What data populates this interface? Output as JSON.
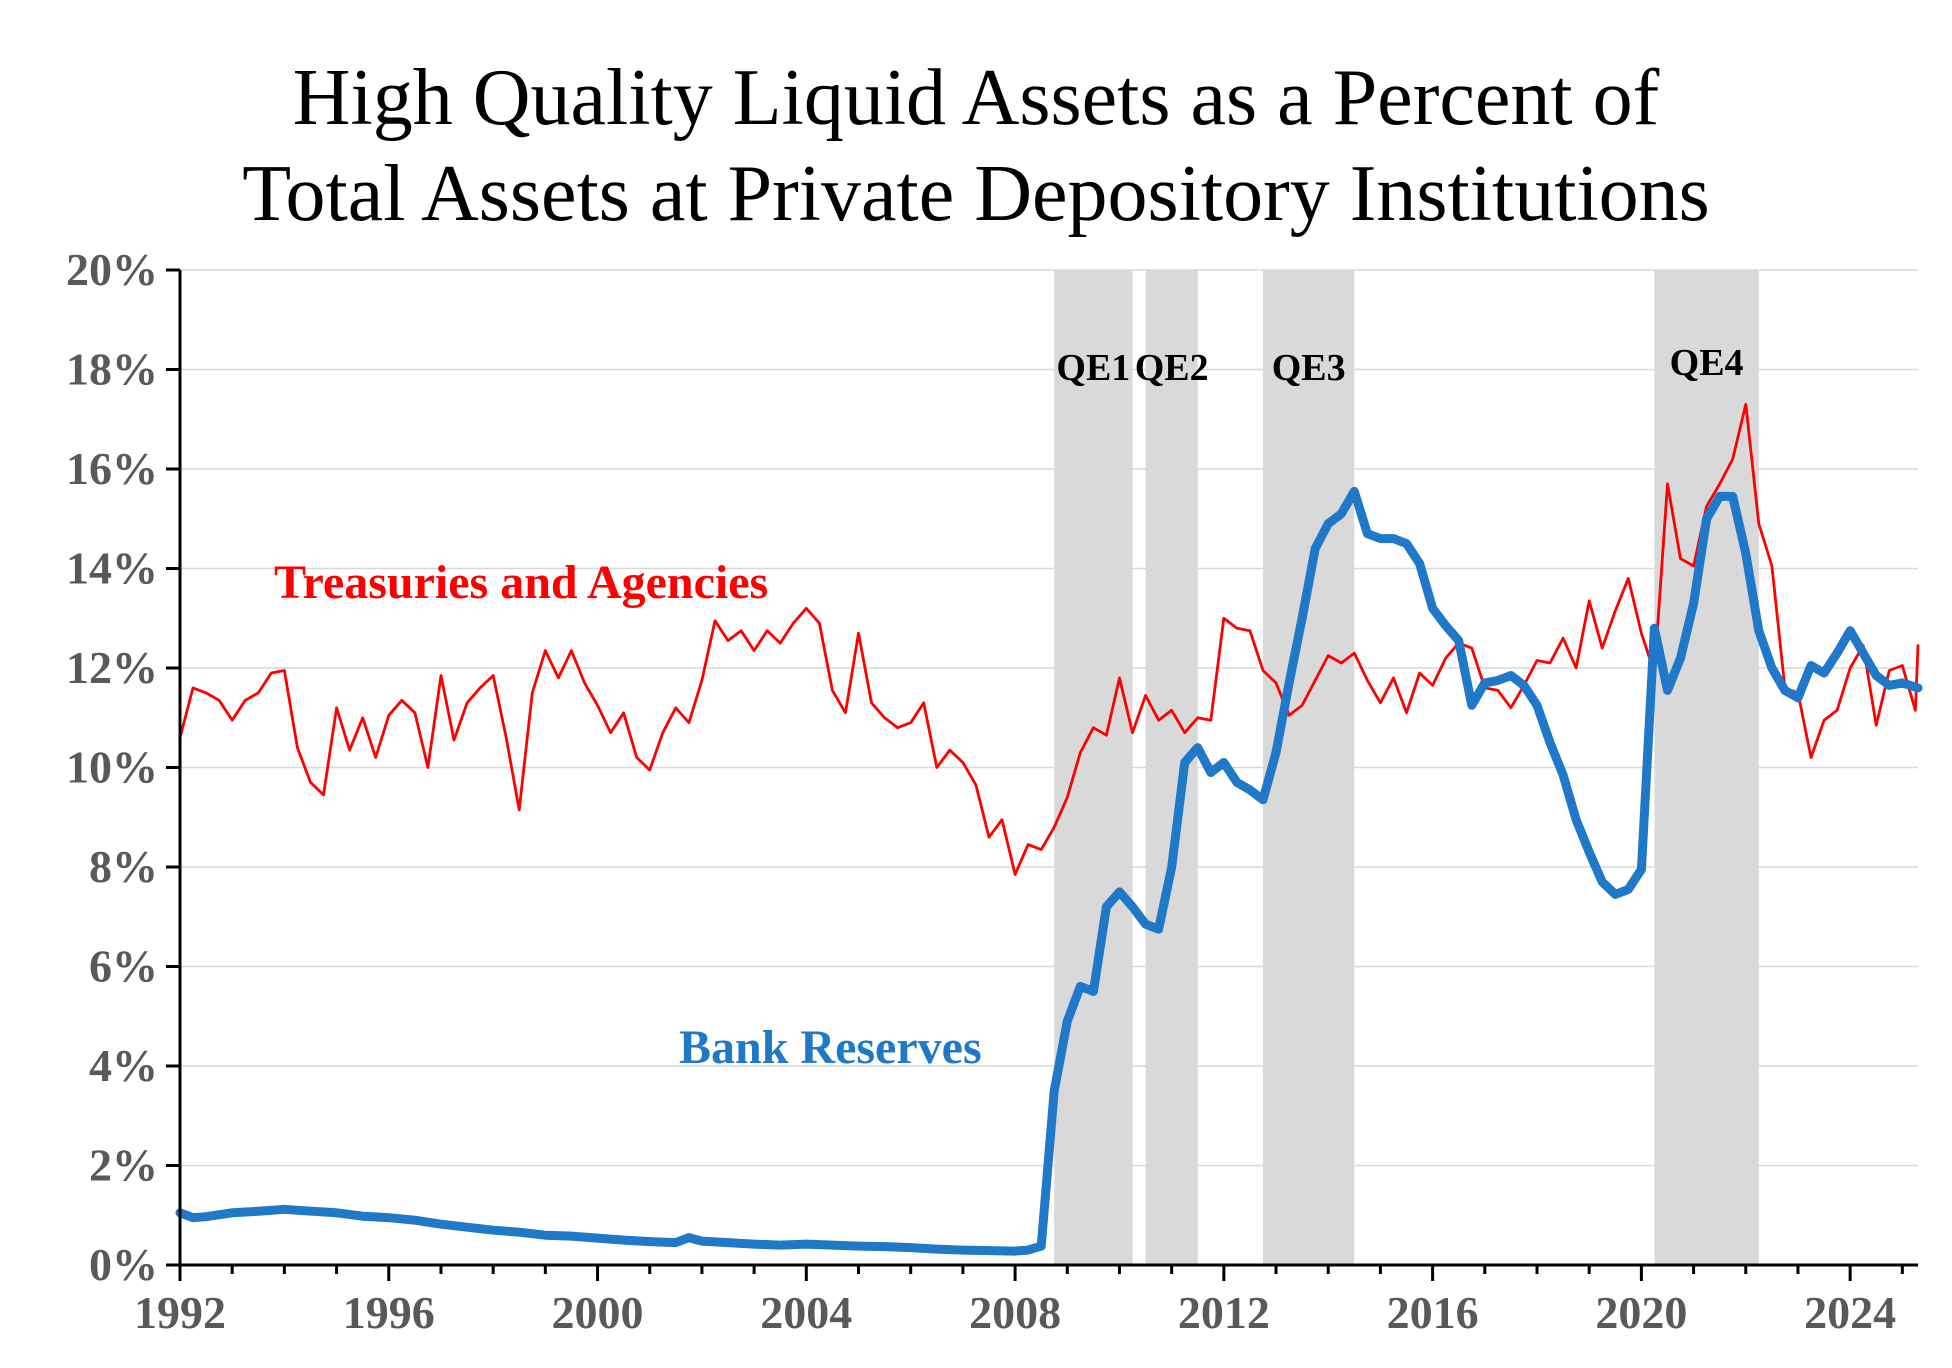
{
  "chart_data": {
    "type": "line",
    "title": "High Quality Liquid Assets as a Percent of Total Assets at Private Depository Institutions",
    "title_lines": [
      "High Quality Liquid Assets as a Percent of",
      "Total Assets at Private Depository Institutions"
    ],
    "xlabel": "",
    "ylabel": "",
    "xlim": [
      1992,
      2025.3
    ],
    "ylim": [
      0,
      20
    ],
    "x_ticks": [
      1992,
      1996,
      2000,
      2004,
      2008,
      2012,
      2016,
      2020,
      2024
    ],
    "y_ticks": [
      0,
      2,
      4,
      6,
      8,
      10,
      12,
      14,
      16,
      18,
      20
    ],
    "y_tick_labels": [
      "0%",
      "2%",
      "4%",
      "6%",
      "8%",
      "10%",
      "12%",
      "14%",
      "16%",
      "18%",
      "20%"
    ],
    "grid": "horizontal",
    "shaded_periods": [
      {
        "label": "QE1",
        "start": 2008.75,
        "end": 2010.25
      },
      {
        "label": "QE2",
        "start": 2010.5,
        "end": 2011.5
      },
      {
        "label": "QE3",
        "start": 2012.75,
        "end": 2014.5
      },
      {
        "label": "QE4",
        "start": 2020.25,
        "end": 2022.25
      }
    ],
    "series": [
      {
        "name": "Treasuries and Agencies",
        "color": "#ff0000",
        "style": "thin",
        "points": [
          [
            1992.0,
            10.6
          ],
          [
            1992.25,
            11.6
          ],
          [
            1992.5,
            11.5
          ],
          [
            1992.75,
            11.35
          ],
          [
            1993.0,
            10.95
          ],
          [
            1993.25,
            11.35
          ],
          [
            1993.5,
            11.5
          ],
          [
            1993.75,
            11.9
          ],
          [
            1994.0,
            11.95
          ],
          [
            1994.25,
            10.4
          ],
          [
            1994.5,
            9.7
          ],
          [
            1994.75,
            9.45
          ],
          [
            1995.0,
            11.2
          ],
          [
            1995.25,
            10.35
          ],
          [
            1995.5,
            11.0
          ],
          [
            1995.75,
            10.2
          ],
          [
            1996.0,
            11.05
          ],
          [
            1996.25,
            11.35
          ],
          [
            1996.5,
            11.1
          ],
          [
            1996.75,
            10.0
          ],
          [
            1997.0,
            11.85
          ],
          [
            1997.25,
            10.55
          ],
          [
            1997.5,
            11.3
          ],
          [
            1997.75,
            11.6
          ],
          [
            1998.0,
            11.85
          ],
          [
            1998.25,
            10.6
          ],
          [
            1998.5,
            9.15
          ],
          [
            1998.75,
            11.5
          ],
          [
            1999.0,
            12.35
          ],
          [
            1999.25,
            11.8
          ],
          [
            1999.5,
            12.35
          ],
          [
            1999.75,
            11.7
          ],
          [
            2000.0,
            11.25
          ],
          [
            2000.25,
            10.7
          ],
          [
            2000.5,
            11.1
          ],
          [
            2000.75,
            10.2
          ],
          [
            2001.0,
            9.95
          ],
          [
            2001.25,
            10.7
          ],
          [
            2001.5,
            11.2
          ],
          [
            2001.75,
            10.9
          ],
          [
            2002.0,
            11.75
          ],
          [
            2002.25,
            12.95
          ],
          [
            2002.5,
            12.55
          ],
          [
            2002.75,
            12.75
          ],
          [
            2003.0,
            12.35
          ],
          [
            2003.25,
            12.75
          ],
          [
            2003.5,
            12.5
          ],
          [
            2003.75,
            12.9
          ],
          [
            2004.0,
            13.2
          ],
          [
            2004.25,
            12.9
          ],
          [
            2004.5,
            11.55
          ],
          [
            2004.75,
            11.1
          ],
          [
            2005.0,
            12.7
          ],
          [
            2005.25,
            11.3
          ],
          [
            2005.5,
            11.0
          ],
          [
            2005.75,
            10.8
          ],
          [
            2006.0,
            10.9
          ],
          [
            2006.25,
            11.3
          ],
          [
            2006.5,
            10.0
          ],
          [
            2006.75,
            10.35
          ],
          [
            2007.0,
            10.1
          ],
          [
            2007.25,
            9.65
          ],
          [
            2007.5,
            8.6
          ],
          [
            2007.75,
            8.95
          ],
          [
            2008.0,
            7.85
          ],
          [
            2008.25,
            8.45
          ],
          [
            2008.5,
            8.35
          ],
          [
            2008.75,
            8.8
          ],
          [
            2009.0,
            9.4
          ],
          [
            2009.25,
            10.3
          ],
          [
            2009.5,
            10.8
          ],
          [
            2009.75,
            10.65
          ],
          [
            2010.0,
            11.8
          ],
          [
            2010.25,
            10.7
          ],
          [
            2010.5,
            11.45
          ],
          [
            2010.75,
            10.95
          ],
          [
            2011.0,
            11.15
          ],
          [
            2011.25,
            10.7
          ],
          [
            2011.5,
            11.0
          ],
          [
            2011.75,
            10.95
          ],
          [
            2012.0,
            13.0
          ],
          [
            2012.25,
            12.8
          ],
          [
            2012.5,
            12.75
          ],
          [
            2012.75,
            11.95
          ],
          [
            2013.0,
            11.7
          ],
          [
            2013.25,
            11.05
          ],
          [
            2013.5,
            11.25
          ],
          [
            2013.75,
            11.75
          ],
          [
            2014.0,
            12.25
          ],
          [
            2014.25,
            12.1
          ],
          [
            2014.5,
            12.3
          ],
          [
            2014.75,
            11.75
          ],
          [
            2015.0,
            11.3
          ],
          [
            2015.25,
            11.8
          ],
          [
            2015.5,
            11.1
          ],
          [
            2015.75,
            11.9
          ],
          [
            2016.0,
            11.65
          ],
          [
            2016.25,
            12.2
          ],
          [
            2016.5,
            12.5
          ],
          [
            2016.75,
            12.4
          ],
          [
            2017.0,
            11.6
          ],
          [
            2017.25,
            11.55
          ],
          [
            2017.5,
            11.2
          ],
          [
            2017.75,
            11.65
          ],
          [
            2018.0,
            12.15
          ],
          [
            2018.25,
            12.1
          ],
          [
            2018.5,
            12.6
          ],
          [
            2018.75,
            12.0
          ],
          [
            2019.0,
            13.35
          ],
          [
            2019.25,
            12.4
          ],
          [
            2019.5,
            13.15
          ],
          [
            2019.75,
            13.8
          ],
          [
            2020.0,
            12.7
          ],
          [
            2020.25,
            11.9
          ],
          [
            2020.5,
            15.7
          ],
          [
            2020.75,
            14.2
          ],
          [
            2021.0,
            14.05
          ],
          [
            2021.25,
            15.25
          ],
          [
            2021.5,
            15.7
          ],
          [
            2021.75,
            16.2
          ],
          [
            2022.0,
            17.3
          ],
          [
            2022.25,
            14.9
          ],
          [
            2022.5,
            14.05
          ],
          [
            2022.75,
            11.6
          ],
          [
            2023.0,
            11.5
          ],
          [
            2023.25,
            10.2
          ],
          [
            2023.5,
            10.95
          ],
          [
            2023.75,
            11.15
          ],
          [
            2024.0,
            12.0
          ],
          [
            2024.25,
            12.45
          ],
          [
            2024.5,
            10.85
          ],
          [
            2024.75,
            11.95
          ],
          [
            2025.0,
            12.05
          ],
          [
            2025.25,
            11.15
          ],
          [
            2025.3,
            12.45
          ]
        ]
      },
      {
        "name": "Bank Reserves",
        "color": "#1f78c8",
        "style": "thick",
        "points": [
          [
            1992.0,
            1.05
          ],
          [
            1992.25,
            0.95
          ],
          [
            1992.5,
            0.97
          ],
          [
            1993.0,
            1.05
          ],
          [
            1993.5,
            1.08
          ],
          [
            1993.75,
            1.1
          ],
          [
            1994.0,
            1.12
          ],
          [
            1994.25,
            1.1
          ],
          [
            1995.0,
            1.05
          ],
          [
            1995.5,
            0.98
          ],
          [
            1996.0,
            0.95
          ],
          [
            1996.5,
            0.9
          ],
          [
            1997.0,
            0.82
          ],
          [
            1997.5,
            0.76
          ],
          [
            1998.0,
            0.7
          ],
          [
            1998.5,
            0.66
          ],
          [
            1999.0,
            0.6
          ],
          [
            1999.5,
            0.58
          ],
          [
            2000.0,
            0.54
          ],
          [
            2000.5,
            0.5
          ],
          [
            2001.0,
            0.47
          ],
          [
            2001.5,
            0.45
          ],
          [
            2001.75,
            0.55
          ],
          [
            2002.0,
            0.48
          ],
          [
            2002.5,
            0.45
          ],
          [
            2003.0,
            0.42
          ],
          [
            2003.5,
            0.4
          ],
          [
            2004.0,
            0.42
          ],
          [
            2004.5,
            0.4
          ],
          [
            2005.0,
            0.38
          ],
          [
            2005.5,
            0.37
          ],
          [
            2006.0,
            0.35
          ],
          [
            2006.5,
            0.32
          ],
          [
            2007.0,
            0.3
          ],
          [
            2007.5,
            0.29
          ],
          [
            2008.0,
            0.28
          ],
          [
            2008.25,
            0.3
          ],
          [
            2008.5,
            0.38
          ],
          [
            2008.75,
            3.5
          ],
          [
            2009.0,
            4.9
          ],
          [
            2009.25,
            5.6
          ],
          [
            2009.5,
            5.5
          ],
          [
            2009.75,
            7.2
          ],
          [
            2010.0,
            7.5
          ],
          [
            2010.25,
            7.2
          ],
          [
            2010.5,
            6.85
          ],
          [
            2010.75,
            6.75
          ],
          [
            2011.0,
            8.0
          ],
          [
            2011.25,
            10.1
          ],
          [
            2011.5,
            10.4
          ],
          [
            2011.75,
            9.9
          ],
          [
            2012.0,
            10.1
          ],
          [
            2012.25,
            9.7
          ],
          [
            2012.5,
            9.55
          ],
          [
            2012.75,
            9.35
          ],
          [
            2013.0,
            10.3
          ],
          [
            2013.25,
            11.7
          ],
          [
            2013.5,
            13.0
          ],
          [
            2013.75,
            14.4
          ],
          [
            2014.0,
            14.9
          ],
          [
            2014.25,
            15.1
          ],
          [
            2014.5,
            15.55
          ],
          [
            2014.75,
            14.7
          ],
          [
            2015.0,
            14.6
          ],
          [
            2015.25,
            14.6
          ],
          [
            2015.5,
            14.5
          ],
          [
            2015.75,
            14.1
          ],
          [
            2016.0,
            13.2
          ],
          [
            2016.25,
            12.85
          ],
          [
            2016.5,
            12.55
          ],
          [
            2016.75,
            11.25
          ],
          [
            2017.0,
            11.7
          ],
          [
            2017.25,
            11.75
          ],
          [
            2017.5,
            11.85
          ],
          [
            2017.75,
            11.65
          ],
          [
            2018.0,
            11.25
          ],
          [
            2018.25,
            10.5
          ],
          [
            2018.5,
            9.85
          ],
          [
            2018.75,
            8.95
          ],
          [
            2019.0,
            8.3
          ],
          [
            2019.25,
            7.7
          ],
          [
            2019.5,
            7.45
          ],
          [
            2019.75,
            7.55
          ],
          [
            2020.0,
            7.95
          ],
          [
            2020.25,
            12.8
          ],
          [
            2020.5,
            11.55
          ],
          [
            2020.75,
            12.2
          ],
          [
            2021.0,
            13.3
          ],
          [
            2021.25,
            15.0
          ],
          [
            2021.5,
            15.45
          ],
          [
            2021.75,
            15.45
          ],
          [
            2022.0,
            14.3
          ],
          [
            2022.25,
            12.75
          ],
          [
            2022.5,
            12.0
          ],
          [
            2022.75,
            11.55
          ],
          [
            2023.0,
            11.4
          ],
          [
            2023.25,
            12.05
          ],
          [
            2023.5,
            11.9
          ],
          [
            2023.75,
            12.3
          ],
          [
            2024.0,
            12.75
          ],
          [
            2024.25,
            12.3
          ],
          [
            2024.5,
            11.85
          ],
          [
            2024.75,
            11.65
          ],
          [
            2025.0,
            11.7
          ],
          [
            2025.3,
            11.6
          ]
        ]
      }
    ],
    "annotations": [
      {
        "text": "Treasuries and Agencies",
        "series": "Treasuries and Agencies"
      },
      {
        "text": "Bank Reserves",
        "series": "Bank Reserves"
      },
      {
        "text": "QE1"
      },
      {
        "text": "QE2"
      },
      {
        "text": "QE3"
      },
      {
        "text": "QE4"
      }
    ]
  }
}
